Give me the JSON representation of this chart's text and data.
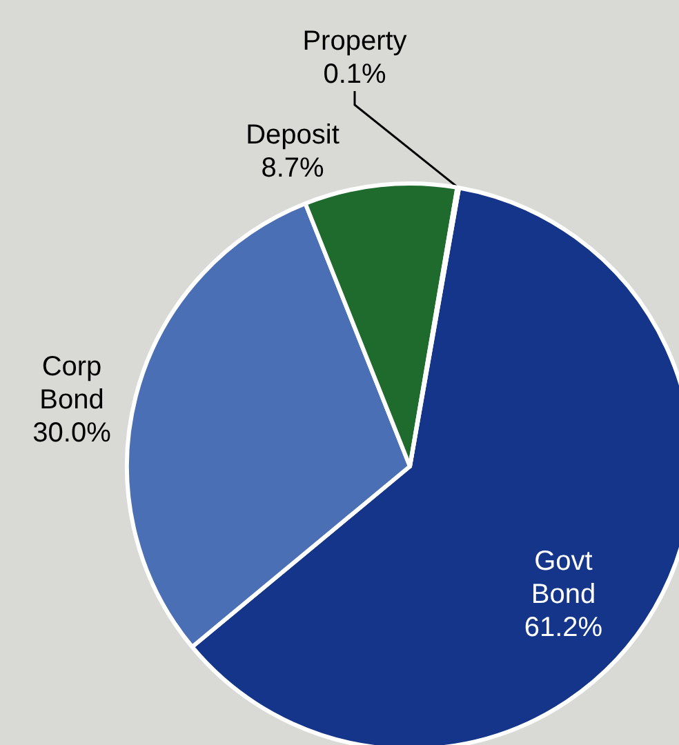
{
  "chart_data": {
    "type": "pie",
    "categories": [
      "Govt Bond",
      "Corp Bond",
      "Deposit",
      "Property"
    ],
    "values": [
      61.2,
      30.0,
      8.7,
      0.1
    ],
    "colors": [
      "#14358a",
      "#4a6fb5",
      "#1f6b2e",
      "#7f7f7f"
    ],
    "value_labels": [
      "61.2%",
      "30.0%",
      "8.7%",
      "0.1%"
    ]
  }
}
